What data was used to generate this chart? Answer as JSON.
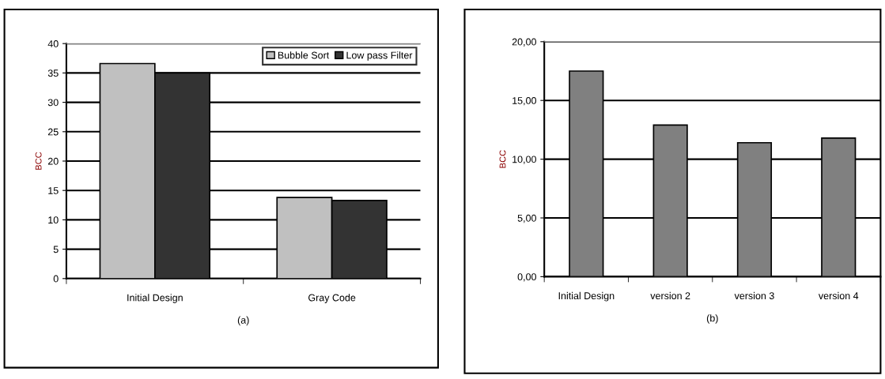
{
  "chart_data": [
    {
      "type": "bar",
      "xlabel": "(a)",
      "ylabel": "BCC",
      "categories": [
        "Initial Design",
        "Gray Code"
      ],
      "series": [
        {
          "name": "Bubble Sort",
          "color": "#c0c0c0",
          "values": [
            36.6,
            13.8
          ]
        },
        {
          "name": "Low pass Filter",
          "color": "#333333",
          "values": [
            35.0,
            13.3
          ]
        }
      ],
      "ylim": [
        0,
        40
      ],
      "yticks": [
        0,
        5,
        10,
        15,
        20,
        25,
        30,
        35,
        40
      ],
      "grid": "y",
      "legend": "top right"
    },
    {
      "type": "bar",
      "xlabel": "(b)",
      "ylabel": "BCC",
      "categories": [
        "Initial Design",
        "version 2",
        "version 3",
        "version 4"
      ],
      "series": [
        {
          "color": "#808080",
          "values": [
            17.5,
            12.9,
            11.4,
            11.8
          ]
        }
      ],
      "ylim": [
        0,
        20
      ],
      "yticks": [
        {
          "value": 0,
          "label": "0,00"
        },
        {
          "value": 5,
          "label": "5,00"
        },
        {
          "value": 10,
          "label": "10,00"
        },
        {
          "value": 15,
          "label": "15,00"
        },
        {
          "value": 20,
          "label": "20,00"
        }
      ],
      "grid": "y"
    }
  ]
}
